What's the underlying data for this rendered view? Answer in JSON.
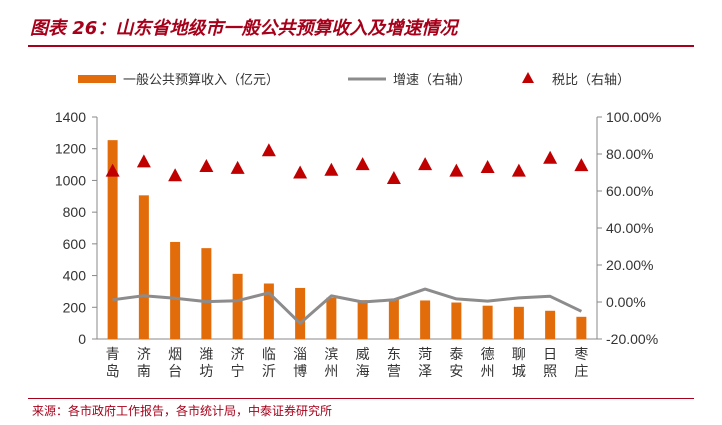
{
  "header": {
    "title": "图表 26：山东省地级市一般公共预算收入及增速情况"
  },
  "footer": {
    "source": "来源：各市政府工作报告，各市统计局，中泰证券研究所"
  },
  "colors": {
    "accent": "#a6001a",
    "bar": "#e36c0a",
    "line": "#8c8c8c",
    "marker": "#c00000"
  },
  "chart_data": {
    "type": "bar",
    "categories": [
      "青岛",
      "济南",
      "烟台",
      "潍坊",
      "济宁",
      "临沂",
      "淄博",
      "滨州",
      "威海",
      "东营",
      "菏泽",
      "泰安",
      "德州",
      "聊城",
      "日照",
      "枣庄"
    ],
    "category_labels": [
      [
        "青",
        "岛"
      ],
      [
        "济",
        "南"
      ],
      [
        "烟",
        "台"
      ],
      [
        "潍",
        "坊"
      ],
      [
        "济",
        "宁"
      ],
      [
        "临",
        "沂"
      ],
      [
        "淄",
        "博"
      ],
      [
        "滨",
        "州"
      ],
      [
        "威",
        "海"
      ],
      [
        "东",
        "营"
      ],
      [
        "菏",
        "泽"
      ],
      [
        "泰",
        "安"
      ],
      [
        "德",
        "州"
      ],
      [
        "聊",
        "城"
      ],
      [
        "日",
        "照"
      ],
      [
        "枣",
        "庄"
      ]
    ],
    "series": [
      {
        "name": "一般公共预算收入（亿元）",
        "type": "bar",
        "axis": "left",
        "values": [
          1254,
          906,
          612,
          573,
          411,
          350,
          322,
          260,
          245,
          252,
          243,
          230,
          210,
          203,
          178,
          140
        ]
      },
      {
        "name": "增速（右轴）",
        "type": "line",
        "axis": "right",
        "values": [
          0.012,
          0.034,
          0.02,
          0.002,
          0.007,
          0.05,
          -0.115,
          0.033,
          0.0,
          0.012,
          0.07,
          0.017,
          0.005,
          0.022,
          0.031,
          -0.05
        ]
      },
      {
        "name": "税比（右轴）",
        "type": "scatter",
        "axis": "right",
        "values": [
          0.71,
          0.76,
          0.685,
          0.735,
          0.725,
          0.82,
          0.7,
          0.715,
          0.745,
          0.67,
          0.745,
          0.71,
          0.73,
          0.71,
          0.78,
          0.74
        ]
      }
    ],
    "yticks_left": [
      "0",
      "200",
      "400",
      "600",
      "800",
      "1000",
      "1200",
      "1400"
    ],
    "yticks_right": [
      "-20.00%",
      "0.00%",
      "20.00%",
      "40.00%",
      "60.00%",
      "80.00%",
      "100.00%"
    ],
    "ylim_left": [
      0,
      1400
    ],
    "ylim_right": [
      -0.2,
      1.0
    ],
    "legend_position": "top",
    "grid": false
  }
}
